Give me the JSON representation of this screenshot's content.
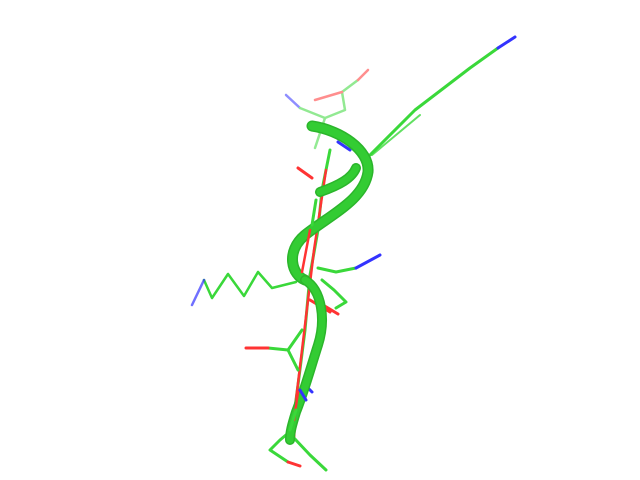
{
  "viewer": {
    "background": "#ffffff"
  },
  "molecule": {
    "representation": "cartoon-and-sticks",
    "colors": {
      "carbon": "#3ad83a",
      "carbon_dark": "#2bb52b",
      "ribbon": "#33cc33",
      "oxygen": "#ff3333",
      "nitrogen": "#3333ff"
    }
  }
}
